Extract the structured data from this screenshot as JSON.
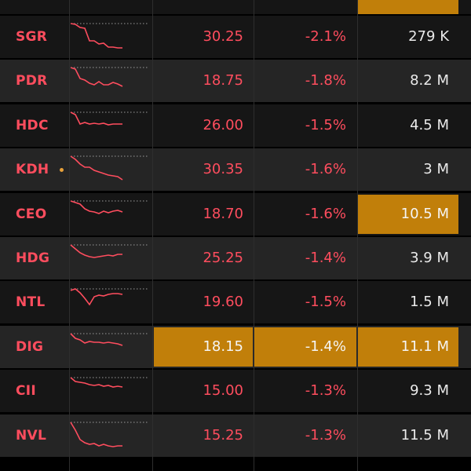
{
  "colors": {
    "background_dark": "#161616",
    "background_light": "#252525",
    "down_red": "#ff4d5e",
    "highlight_orange": "#c17f0a",
    "volume_text": "#eaeaea",
    "dot_orange": "#e8a13a"
  },
  "rows": [
    {
      "symbol": "SGR",
      "price": "30.25",
      "change": "-2.1%",
      "volume": "279 K",
      "highlight": [],
      "dot": false,
      "spark": [
        0,
        1,
        5,
        6,
        22,
        22,
        26,
        25,
        30,
        30,
        31,
        31
      ]
    },
    {
      "symbol": "PDR",
      "price": "18.75",
      "change": "-1.8%",
      "volume": "8.2 M",
      "highlight": [],
      "dot": false,
      "spark": [
        0,
        2,
        14,
        16,
        20,
        22,
        18,
        22,
        22,
        19,
        21,
        24
      ]
    },
    {
      "symbol": "HDC",
      "price": "26.00",
      "change": "-1.5%",
      "volume": "4.5 M",
      "highlight": [],
      "dot": false,
      "spark": [
        0,
        3,
        15,
        13,
        15,
        14,
        15,
        14,
        16,
        15,
        15,
        15
      ]
    },
    {
      "symbol": "KDH",
      "price": "30.35",
      "change": "-1.6%",
      "volume": "3 M",
      "highlight": [],
      "dot": true,
      "spark": [
        0,
        4,
        10,
        14,
        14,
        18,
        20,
        22,
        24,
        25,
        26,
        30
      ]
    },
    {
      "symbol": "CEO",
      "price": "18.70",
      "change": "-1.6%",
      "volume": "10.5 M",
      "highlight": [
        "volume"
      ],
      "dot": false,
      "spark": [
        0,
        2,
        4,
        10,
        13,
        14,
        16,
        13,
        15,
        13,
        12,
        14
      ]
    },
    {
      "symbol": "HDG",
      "price": "25.25",
      "change": "-1.4%",
      "volume": "3.9 M",
      "highlight": [],
      "dot": false,
      "spark": [
        0,
        5,
        10,
        13,
        15,
        16,
        15,
        14,
        13,
        14,
        12,
        12
      ]
    },
    {
      "symbol": "NTL",
      "price": "19.60",
      "change": "-1.5%",
      "volume": "1.5 M",
      "highlight": [],
      "dot": false,
      "spark": [
        2,
        0,
        5,
        12,
        20,
        10,
        8,
        9,
        7,
        6,
        6,
        7
      ]
    },
    {
      "symbol": "DIG",
      "price": "18.15",
      "change": "-1.4%",
      "volume": "11.1 M",
      "highlight": [
        "price",
        "change",
        "volume"
      ],
      "dot": false,
      "spark": [
        0,
        6,
        8,
        12,
        10,
        11,
        11,
        12,
        11,
        12,
        13,
        15
      ]
    },
    {
      "symbol": "CII",
      "price": "15.00",
      "change": "-1.3%",
      "volume": "9.3 M",
      "highlight": [],
      "dot": false,
      "spark": [
        0,
        5,
        6,
        7,
        9,
        10,
        9,
        11,
        10,
        12,
        11,
        12
      ]
    },
    {
      "symbol": "NVL",
      "price": "15.25",
      "change": "-1.3%",
      "volume": "11.5 M",
      "highlight": [],
      "dot": false,
      "spark": [
        0,
        10,
        22,
        26,
        28,
        27,
        30,
        28,
        30,
        31,
        30,
        30
      ]
    }
  ]
}
